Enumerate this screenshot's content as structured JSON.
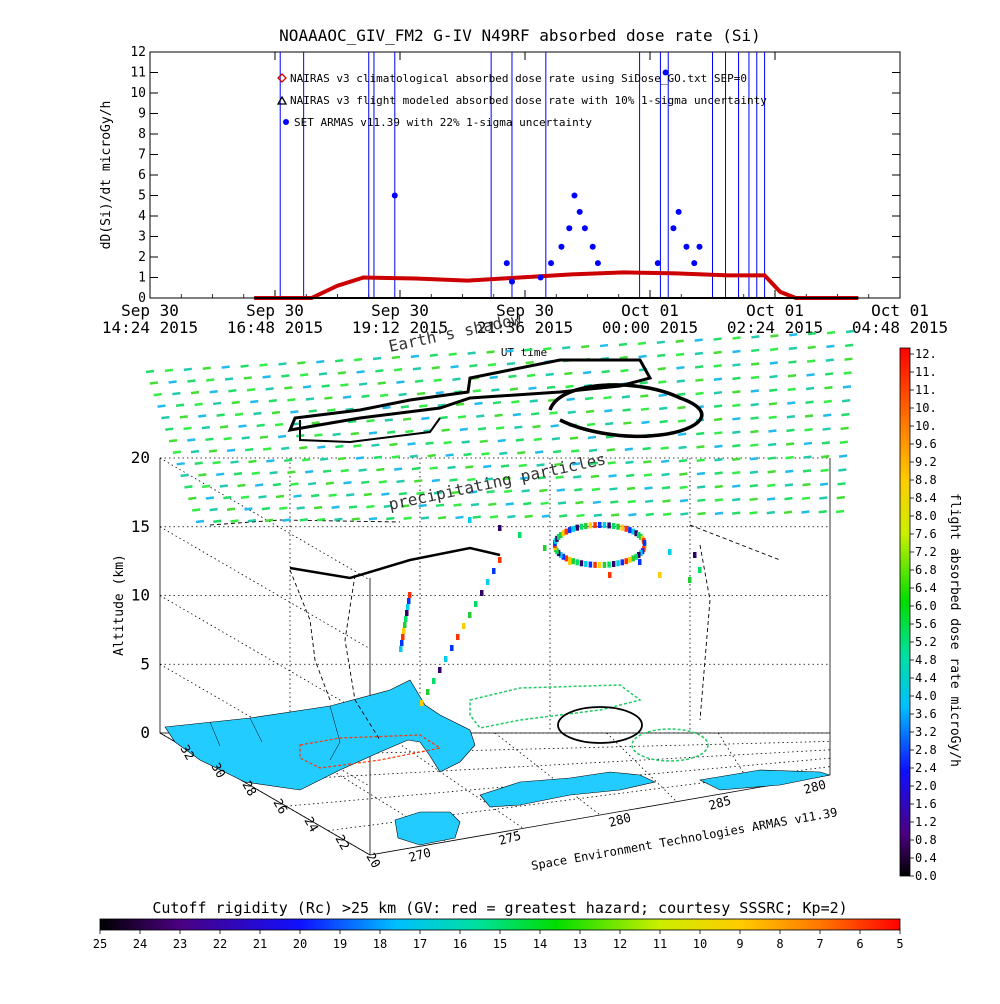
{
  "chart_data": [
    {
      "type": "line",
      "title": "NOAAAOC_GIV_FM2 G-IV   N49RF  absorbed dose rate (Si)",
      "ylabel": "dD(Si)/dt microGy/h",
      "xlabel": "UT time",
      "ylim": [
        0,
        12
      ],
      "yticks": [
        "0",
        "1",
        "2",
        "3",
        "4",
        "5",
        "6",
        "7",
        "8",
        "9",
        "10",
        "11",
        "12"
      ],
      "xticks": [
        {
          "line1": "Sep 30",
          "line2": "14:24 2015"
        },
        {
          "line1": "Sep 30",
          "line2": "16:48 2015"
        },
        {
          "line1": "Sep 30",
          "line2": "19:12 2015"
        },
        {
          "line1": "Sep 30",
          "line2": "21:36 2015"
        },
        {
          "line1": "Oct 01",
          "line2": "00:00 2015"
        },
        {
          "line1": "Oct 01",
          "line2": "02:24 2015"
        },
        {
          "line1": "Oct 01",
          "line2": "04:48 2015"
        }
      ],
      "xlim_hours": [
        14.4,
        28.8
      ],
      "legend": [
        {
          "label": "NAIRAS v3 climatological absorbed dose rate using SiDose_GO.txt SEP=0",
          "marker": "diamond",
          "color": "#cc0000"
        },
        {
          "label": "NAIRAS v3 flight modeled absorbed dose rate with 10% 1-sigma uncertainty",
          "marker": "triangle",
          "color": "#000000"
        },
        {
          "label": "SET ARMAS v11.39 with 22% 1-sigma uncertainty",
          "marker": "circle",
          "color": "#0000ff"
        }
      ],
      "series": [
        {
          "name": "NAIRAS v3 climatological absorbed dose rate using SiDose_GO.txt SEP=0",
          "color": "#cc0000",
          "x_hours": [
            16.4,
            17.5,
            18.0,
            18.5,
            19.5,
            20.5,
            21.5,
            22.5,
            23.5,
            24.5,
            25.5,
            26.2,
            26.5,
            26.8,
            28.0
          ],
          "values": [
            0,
            0,
            0.6,
            1.0,
            0.95,
            0.85,
            1.0,
            1.15,
            1.25,
            1.2,
            1.1,
            1.1,
            0.3,
            0,
            0
          ]
        },
        {
          "name": "SET ARMAS v11.39 with 22% 1-sigma uncertainty",
          "color": "#0000ff",
          "points": [
            {
              "x_hours": 19.1,
              "y": 5.0
            },
            {
              "x_hours": 21.25,
              "y": 1.7
            },
            {
              "x_hours": 21.35,
              "y": 0.8
            },
            {
              "x_hours": 21.9,
              "y": 1.0
            },
            {
              "x_hours": 22.1,
              "y": 1.7
            },
            {
              "x_hours": 22.3,
              "y": 2.5
            },
            {
              "x_hours": 22.45,
              "y": 3.4
            },
            {
              "x_hours": 22.55,
              "y": 5.0
            },
            {
              "x_hours": 22.65,
              "y": 4.2
            },
            {
              "x_hours": 22.75,
              "y": 3.4
            },
            {
              "x_hours": 22.9,
              "y": 2.5
            },
            {
              "x_hours": 23.0,
              "y": 1.7
            },
            {
              "x_hours": 24.15,
              "y": 1.7
            },
            {
              "x_hours": 24.3,
              "y": 11.0
            },
            {
              "x_hours": 24.45,
              "y": 3.4
            },
            {
              "x_hours": 24.55,
              "y": 4.2
            },
            {
              "x_hours": 24.7,
              "y": 2.5
            },
            {
              "x_hours": 24.85,
              "y": 1.7
            },
            {
              "x_hours": 24.95,
              "y": 2.5
            }
          ],
          "spike_x_hours": [
            16.9,
            17.35,
            18.6,
            18.7,
            19.1,
            20.95,
            21.35,
            22.0,
            23.8,
            24.2,
            24.35,
            25.2,
            25.45,
            25.7,
            25.9,
            26.05,
            26.2
          ]
        }
      ]
    },
    {
      "type": "scatter",
      "zlabel": "Altitude (km)",
      "zticks": [
        "0",
        "5",
        "10",
        "15",
        "20"
      ],
      "lat_ticks": [
        "32",
        "30",
        "28",
        "26",
        "24",
        "22",
        "20"
      ],
      "lon_ticks": [
        "270",
        "275",
        "280",
        "285",
        "280"
      ],
      "annotations": [
        "Earth's shadow",
        "precipitating particles"
      ],
      "credit": "Space Environment Technologies ARMAS v11.39"
    }
  ],
  "colorbar_right": {
    "label": "flight absorbed dose rate microGy/h",
    "ticks": [
      "12.",
      "11.",
      "11.",
      "10.",
      "10.",
      "9.6",
      "9.2",
      "8.8",
      "8.4",
      "8.0",
      "7.6",
      "7.2",
      "6.8",
      "6.4",
      "6.0",
      "5.6",
      "5.2",
      "4.8",
      "4.4",
      "4.0",
      "3.6",
      "3.2",
      "2.8",
      "2.4",
      "2.0",
      "1.6",
      "1.2",
      "0.8",
      "0.4",
      "0.0"
    ]
  },
  "colorbar_bottom": {
    "title": "Cutoff rigidity (Rc) >25 km (GV: red = greatest hazard; courtesy SSSRC; Kp=2)",
    "ticks": [
      "25",
      "24",
      "23",
      "22",
      "21",
      "20",
      "19",
      "18",
      "17",
      "16",
      "15",
      "14",
      "13",
      "12",
      "11",
      "10",
      "9",
      "8",
      "7",
      "6",
      "5"
    ]
  },
  "colors": {
    "armas": "#0000ff",
    "nairas_clim": "#cc0000",
    "sea": "#ffffff",
    "land": "#22ccff"
  }
}
